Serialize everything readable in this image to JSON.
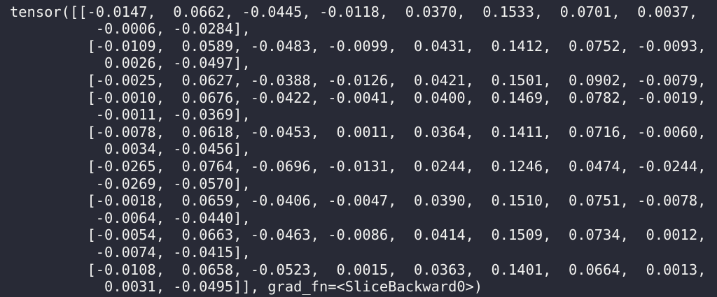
{
  "terminal": {
    "lines": [
      "tensor([[-0.0147,  0.0662, -0.0445, -0.0118,  0.0370,  0.1533,  0.0701,  0.0037,",
      "          -0.0006, -0.0284],",
      "         [-0.0109,  0.0589, -0.0483, -0.0099,  0.0431,  0.1412,  0.0752, -0.0093,",
      "           0.0026, -0.0497],",
      "         [-0.0025,  0.0627, -0.0388, -0.0126,  0.0421,  0.1501,  0.0902, -0.0079,",
      "         [-0.0010,  0.0676, -0.0422, -0.0041,  0.0400,  0.1469,  0.0782, -0.0019,",
      "          -0.0011, -0.0369],",
      "         [-0.0078,  0.0618, -0.0453,  0.0011,  0.0364,  0.1411,  0.0716, -0.0060,",
      "           0.0034, -0.0456],",
      "         [-0.0265,  0.0764, -0.0696, -0.0131,  0.0244,  0.1246,  0.0474, -0.0244,",
      "          -0.0269, -0.0570],",
      "         [-0.0018,  0.0659, -0.0406, -0.0047,  0.0390,  0.1510,  0.0751, -0.0078,",
      "          -0.0064, -0.0440],",
      "         [-0.0054,  0.0663, -0.0463, -0.0086,  0.0414,  0.1509,  0.0734,  0.0012,",
      "          -0.0074, -0.0415],",
      "         [-0.0108,  0.0658, -0.0523,  0.0015,  0.0363,  0.1401,  0.0664,  0.0013,",
      "           0.0031, -0.0495]], grad_fn=<SliceBackward0>)"
    ]
  }
}
